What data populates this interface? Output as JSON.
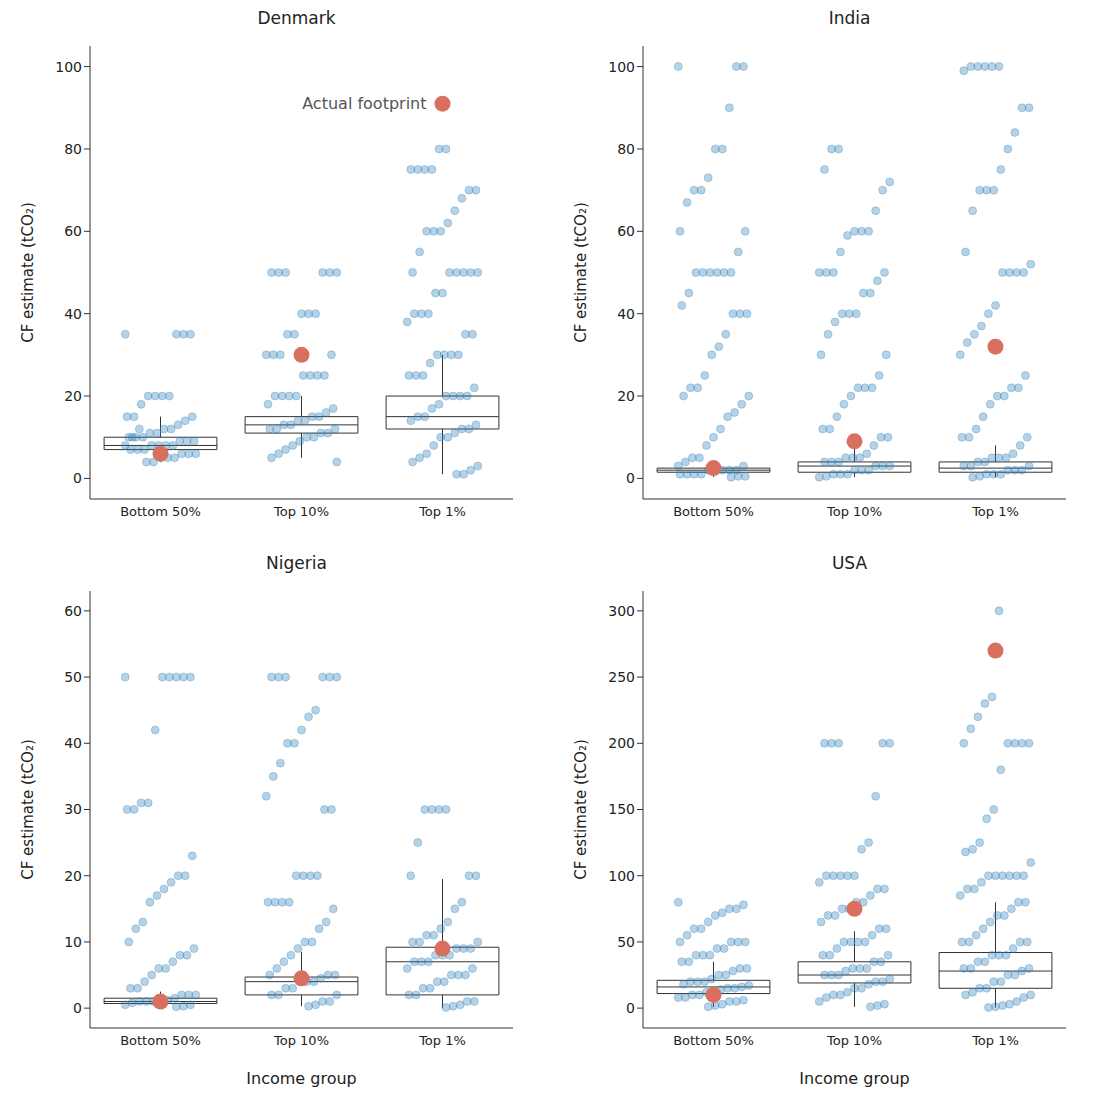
{
  "chart_data": [
    {
      "type": "box",
      "title": "Denmark",
      "y_label": "CF estimate (tCO₂)",
      "categories": [
        "Bottom 50%",
        "Top 10%",
        "Top 1%"
      ],
      "ylim": [
        -5,
        105
      ],
      "yticks": [
        0,
        20,
        40,
        60,
        80,
        100
      ],
      "annotation": "Actual footprint",
      "estimates": {
        "color": "#2e7fb8",
        "values": [
          [
            35,
            35,
            35,
            35,
            20,
            20,
            20,
            20,
            18,
            15,
            15,
            15,
            14,
            13,
            12,
            12,
            11,
            11,
            10,
            10,
            10,
            9,
            9,
            9,
            8,
            8,
            8,
            8,
            7,
            7,
            7,
            6,
            6,
            6,
            5,
            5,
            5,
            4,
            4,
            12,
            10,
            8
          ],
          [
            50,
            50,
            50,
            50,
            50,
            50,
            40,
            40,
            40,
            35,
            35,
            30,
            30,
            30,
            30,
            25,
            25,
            25,
            25,
            20,
            20,
            20,
            20,
            18,
            17,
            16,
            15,
            15,
            14,
            14,
            13,
            13,
            12,
            12,
            12,
            11,
            11,
            10,
            10,
            9,
            8,
            7,
            6,
            5,
            4
          ],
          [
            80,
            80,
            75,
            75,
            75,
            75,
            70,
            70,
            68,
            65,
            62,
            60,
            60,
            60,
            55,
            50,
            50,
            50,
            50,
            50,
            50,
            45,
            45,
            40,
            40,
            40,
            38,
            35,
            35,
            30,
            30,
            30,
            30,
            28,
            25,
            25,
            25,
            22,
            20,
            20,
            20,
            20,
            18,
            17,
            15,
            15,
            14,
            13,
            12,
            12,
            11,
            10,
            10,
            8,
            6,
            5,
            4,
            3,
            2,
            1,
            1
          ]
        ]
      },
      "box": {
        "whisker_low": [
          4,
          5,
          1
        ],
        "q1": [
          7,
          11,
          12
        ],
        "median": [
          8,
          13,
          15
        ],
        "q3": [
          10,
          15,
          20
        ],
        "whisker_high": [
          15,
          20,
          30
        ]
      },
      "actual_footprint": {
        "color": "#d9705f",
        "values": [
          6,
          30,
          91
        ]
      }
    },
    {
      "type": "box",
      "title": "India",
      "y_label": "CF estimate (tCO₂)",
      "categories": [
        "Bottom 50%",
        "Top 10%",
        "Top 1%"
      ],
      "ylim": [
        -5,
        105
      ],
      "yticks": [
        0,
        20,
        40,
        60,
        80,
        100
      ],
      "estimates": {
        "color": "#2e7fb8",
        "values": [
          [
            100,
            100,
            100,
            90,
            80,
            80,
            73,
            70,
            70,
            67,
            60,
            60,
            55,
            50,
            50,
            50,
            50,
            50,
            50,
            45,
            42,
            40,
            40,
            40,
            35,
            32,
            30,
            25,
            22,
            22,
            20,
            20,
            18,
            16,
            15,
            12,
            10,
            8,
            5,
            5,
            4,
            3,
            3,
            2,
            2,
            2,
            2,
            2,
            1,
            1,
            1,
            1,
            0.5,
            0.5,
            0.3
          ],
          [
            80,
            80,
            75,
            72,
            70,
            65,
            60,
            60,
            60,
            59,
            55,
            50,
            50,
            50,
            50,
            48,
            45,
            45,
            40,
            40,
            40,
            38,
            35,
            30,
            30,
            25,
            22,
            22,
            22,
            20,
            18,
            15,
            12,
            12,
            10,
            10,
            8,
            6,
            5,
            5,
            5,
            4,
            4,
            4,
            3,
            3,
            3,
            2,
            2,
            2,
            1,
            1,
            1,
            0.5,
            0.3
          ],
          [
            100,
            100,
            100,
            100,
            100,
            99,
            90,
            90,
            84,
            80,
            75,
            70,
            70,
            70,
            65,
            55,
            52,
            50,
            50,
            50,
            50,
            42,
            40,
            37,
            35,
            33,
            30,
            25,
            22,
            22,
            20,
            20,
            18,
            15,
            12,
            10,
            10,
            10,
            8,
            6,
            5,
            5,
            5,
            4,
            4,
            3,
            3,
            3,
            2,
            2,
            2,
            1,
            1,
            1,
            0.5,
            0.3
          ]
        ]
      },
      "box": {
        "whisker_low": [
          0.3,
          0.3,
          0.3
        ],
        "q1": [
          1.5,
          1.5,
          1.5
        ],
        "median": [
          2,
          3,
          2.5
        ],
        "q3": [
          2.5,
          4,
          4
        ],
        "whisker_high": [
          3.5,
          8,
          8
        ]
      },
      "actual_footprint": {
        "color": "#d9705f",
        "values": [
          2.5,
          9,
          32
        ]
      }
    },
    {
      "type": "box",
      "title": "Nigeria",
      "y_label": "CF estimate (tCO₂)",
      "x_label": "Income group",
      "categories": [
        "Bottom 50%",
        "Top 10%",
        "Top 1%"
      ],
      "ylim": [
        -3,
        63
      ],
      "yticks": [
        0,
        10,
        20,
        30,
        40,
        50,
        60
      ],
      "estimates": {
        "color": "#2e7fb8",
        "values": [
          [
            50,
            50,
            50,
            50,
            50,
            50,
            42,
            31,
            31,
            30,
            30,
            23,
            20,
            20,
            19,
            18,
            17,
            16,
            13,
            12,
            10,
            9,
            8,
            8,
            7,
            6,
            6,
            5,
            4,
            3,
            3,
            2,
            2,
            2,
            1.5,
            1.2,
            1,
            1,
            1,
            1,
            0.8,
            0.5,
            0.5,
            0.3,
            0.2
          ],
          [
            50,
            50,
            50,
            50,
            50,
            50,
            45,
            44,
            42,
            40,
            40,
            37,
            35,
            32,
            30,
            30,
            20,
            20,
            20,
            20,
            16,
            16,
            16,
            16,
            15,
            13,
            12,
            10,
            10,
            9,
            8,
            7,
            6,
            5,
            5,
            5,
            4.5,
            4,
            4,
            4,
            3,
            3,
            2,
            2,
            2,
            1,
            1,
            0.5,
            0.3
          ],
          [
            30,
            30,
            30,
            30,
            25,
            20,
            20,
            20,
            16,
            15,
            13,
            12,
            11,
            11,
            10,
            10,
            10,
            9,
            9,
            9,
            8,
            8,
            8,
            7,
            7,
            7,
            6,
            6,
            5,
            5,
            5,
            4,
            4,
            3,
            3,
            2,
            2,
            1,
            1,
            0.5,
            0.3,
            0.1
          ]
        ]
      },
      "box": {
        "whisker_low": [
          0.2,
          0.3,
          0
        ],
        "q1": [
          0.7,
          2,
          2
        ],
        "median": [
          1,
          4,
          7
        ],
        "q3": [
          1.5,
          4.7,
          9.2
        ],
        "whisker_high": [
          2.5,
          8.5,
          19.5
        ]
      },
      "actual_footprint": {
        "color": "#d9705f",
        "values": [
          1,
          4.5,
          9
        ]
      }
    },
    {
      "type": "box",
      "title": "USA",
      "y_label": "CF estimate (tCO₂)",
      "x_label": "Income group",
      "categories": [
        "Bottom 50%",
        "Top 10%",
        "Top 1%"
      ],
      "ylim": [
        -15,
        315
      ],
      "yticks": [
        0,
        50,
        100,
        150,
        200,
        250,
        300
      ],
      "estimates": {
        "color": "#2e7fb8",
        "values": [
          [
            80,
            78,
            75,
            75,
            72,
            70,
            65,
            60,
            60,
            55,
            50,
            50,
            50,
            50,
            45,
            45,
            40,
            40,
            40,
            35,
            35,
            30,
            30,
            28,
            25,
            25,
            22,
            20,
            20,
            20,
            18,
            17,
            16,
            15,
            15,
            14,
            12,
            12,
            10,
            10,
            8,
            8,
            6,
            5,
            5,
            3,
            2,
            1
          ],
          [
            200,
            200,
            200,
            200,
            200,
            160,
            125,
            120,
            100,
            100,
            100,
            100,
            100,
            95,
            90,
            90,
            85,
            80,
            80,
            75,
            75,
            70,
            70,
            65,
            60,
            60,
            55,
            50,
            50,
            50,
            50,
            45,
            40,
            40,
            40,
            35,
            35,
            30,
            30,
            30,
            28,
            25,
            25,
            25,
            22,
            20,
            20,
            18,
            15,
            15,
            12,
            10,
            10,
            8,
            5,
            3,
            2,
            1
          ],
          [
            300,
            235,
            230,
            220,
            211,
            200,
            200,
            200,
            200,
            200,
            180,
            150,
            143,
            125,
            120,
            118,
            110,
            100,
            100,
            100,
            100,
            100,
            100,
            95,
            90,
            90,
            85,
            80,
            80,
            75,
            70,
            70,
            65,
            60,
            55,
            50,
            50,
            50,
            50,
            45,
            40,
            40,
            40,
            35,
            35,
            30,
            30,
            30,
            28,
            25,
            25,
            20,
            20,
            15,
            15,
            12,
            10,
            10,
            8,
            5,
            3,
            2,
            1,
            0.5
          ]
        ]
      },
      "box": {
        "whisker_low": [
          1,
          1,
          0.5
        ],
        "q1": [
          11,
          19,
          15
        ],
        "median": [
          16,
          25,
          28
        ],
        "q3": [
          21,
          35,
          42
        ],
        "whisker_high": [
          35,
          58,
          80
        ]
      },
      "actual_footprint": {
        "color": "#d9705f",
        "values": [
          10,
          75,
          270
        ]
      }
    }
  ]
}
